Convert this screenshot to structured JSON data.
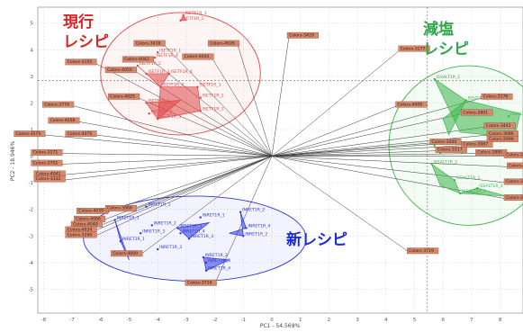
{
  "chart_data": {
    "type": "scatter",
    "xlabel": "PC1 - 54.569%",
    "ylabel": "PC2 - 18.946%",
    "xlim": [
      -8.2,
      8.8
    ],
    "ylim": [
      -5.9,
      5.6
    ],
    "xticks": [
      -8,
      -7,
      -6,
      -5,
      -4,
      -3,
      -2,
      -1,
      0,
      1,
      2,
      3,
      4,
      5,
      6,
      7,
      8
    ],
    "yticks": [
      -5,
      -4,
      -3,
      -2,
      -1,
      0,
      1,
      2,
      3,
      4,
      5
    ],
    "crosshair": {
      "x": 5.45,
      "y": 2.85
    },
    "loadings": [
      {
        "label": "Colors-3429",
        "x": 0.6,
        "y": 4.5
      },
      {
        "label": "Colors-3177",
        "x": 4.5,
        "y": 4.0
      },
      {
        "label": "Colors-4026",
        "x": -1.2,
        "y": 4.2
      },
      {
        "label": "Colors-4043",
        "x": -2.1,
        "y": 3.7
      },
      {
        "label": "Colors-3418",
        "x": -3.8,
        "y": 4.2
      },
      {
        "label": "Colors-4042",
        "x": -4.2,
        "y": 3.6
      },
      {
        "label": "Colors-4050",
        "x": -4.8,
        "y": 3.2
      },
      {
        "label": "Colors-3155",
        "x": -6.2,
        "y": 3.5
      },
      {
        "label": "Colors-4025",
        "x": -4.7,
        "y": 2.2
      },
      {
        "label": "Colors-3774",
        "x": -7.0,
        "y": 1.9
      },
      {
        "label": "Colors-4058",
        "x": -6.8,
        "y": 1.3
      },
      {
        "label": "Colors-4075",
        "x": -6.2,
        "y": 0.8
      },
      {
        "label": "Colors-3575",
        "x": -8.0,
        "y": 0.8
      },
      {
        "label": "Colors-3171",
        "x": -7.4,
        "y": 0.1
      },
      {
        "label": "Colors-3702",
        "x": -7.4,
        "y": -0.3
      },
      {
        "label": "Colors-4041",
        "x": -7.3,
        "y": -0.7
      },
      {
        "label": "Colors-3332",
        "x": -7.3,
        "y": -0.9
      },
      {
        "label": "Colors-4009",
        "x": 4.4,
        "y": 1.9
      },
      {
        "label": "Colors-3176",
        "x": 7.4,
        "y": 2.2
      },
      {
        "label": "Colors-2891",
        "x": 6.7,
        "y": 1.6
      },
      {
        "label": "Colors-3442",
        "x": 7.5,
        "y": 1.1
      },
      {
        "label": "Colors-3086",
        "x": 7.6,
        "y": 0.8
      },
      {
        "label": "Colors-2999",
        "x": 7.6,
        "y": 0.6
      },
      {
        "label": "Colors-3440",
        "x": 5.6,
        "y": 0.5
      },
      {
        "label": "Colors-3087",
        "x": 6.7,
        "y": 0.4
      },
      {
        "label": "Colors-3117",
        "x": 5.8,
        "y": 0.2
      },
      {
        "label": "Colors-2890",
        "x": 7.2,
        "y": 0.1
      },
      {
        "label": "Colors-3440",
        "x": 8.2,
        "y": 0.0
      },
      {
        "label": "Colors-3728",
        "x": 8.3,
        "y": -0.4
      },
      {
        "label": "Colors-3735",
        "x": 8.2,
        "y": -1.0
      },
      {
        "label": "Colors-3730",
        "x": 8.2,
        "y": -1.6
      },
      {
        "label": "Colors-3719",
        "x": 4.8,
        "y": -3.6
      },
      {
        "label": "Colors-4039",
        "x": -5.8,
        "y": -2.1
      },
      {
        "label": "Colors-4066",
        "x": -5.9,
        "y": -2.4
      },
      {
        "label": "Colors-4040",
        "x": -6.0,
        "y": -2.6
      },
      {
        "label": "Colors-4034",
        "x": -6.2,
        "y": -2.8
      },
      {
        "label": "Colors-3290",
        "x": -6.2,
        "y": -3.0
      },
      {
        "label": "Colors-3716",
        "x": -2.0,
        "y": -4.8
      },
      {
        "label": "Colors-4000",
        "x": -4.6,
        "y": -3.7
      },
      {
        "label": "Colors-3966",
        "x": -4.8,
        "y": -2.0
      }
    ],
    "groups": [
      {
        "label": "現行 レシピ",
        "color": "#e04545",
        "ellipse": {
          "cx": -3.2,
          "cy": 3.1,
          "rx": 2.8,
          "ry": 2.3
        },
        "points": [
          {
            "label": "ISETF1R_1",
            "x": -3.1,
            "y": 5.3
          },
          {
            "label": "ISETF1R_1",
            "x": -3.2,
            "y": 5.1
          },
          {
            "label": "ISETF1R_1",
            "x": -4.0,
            "y": 3.9
          },
          {
            "label": "ISETF1R_4",
            "x": -4.1,
            "y": 3.7
          },
          {
            "label": "ISETF1R_2",
            "x": -4.7,
            "y": 3.4
          },
          {
            "label": "ISETF1R_3",
            "x": -4.4,
            "y": 3.1
          },
          {
            "label": "ISETF1R_4",
            "x": -3.6,
            "y": 3.1
          },
          {
            "label": "ISETF1R_4",
            "x": -3.9,
            "y": 2.6
          },
          {
            "label": "ISETF1R_1",
            "x": -2.6,
            "y": 2.6
          },
          {
            "label": "ISETF1R_2",
            "x": -2.5,
            "y": 2.2
          },
          {
            "label": "ISETF1R_3",
            "x": -2.5,
            "y": 1.7
          },
          {
            "label": "ISETF1R_3",
            "x": -4.0,
            "y": 1.4
          },
          {
            "label": "ISETF1R_2",
            "x": -4.3,
            "y": 1.6
          },
          {
            "label": "ISETF1R_3",
            "x": -4.4,
            "y": 2.0
          }
        ],
        "polygons": [
          [
            [
              -4.7,
              3.4
            ],
            [
              -4.4,
              3.1
            ],
            [
              -3.6,
              3.1
            ],
            [
              -3.9,
              2.6
            ]
          ],
          [
            [
              -3.9,
              2.6
            ],
            [
              -2.6,
              2.6
            ],
            [
              -2.5,
              1.7
            ],
            [
              -4.0,
              1.4
            ]
          ],
          [
            [
              -4.4,
              2.0
            ],
            [
              -4.0,
              1.4
            ],
            [
              -3.2,
              2.1
            ]
          ],
          [
            [
              -3.1,
              5.3
            ],
            [
              -3.2,
              5.1
            ],
            [
              -3.0,
              5.1
            ]
          ]
        ]
      },
      {
        "label": "減塩 レシピ",
        "color": "#3bb54a",
        "ellipse": {
          "cx": 6.9,
          "cy": 0.4,
          "rx": 2.8,
          "ry": 3.0
        },
        "points": [
          {
            "label": "ISSALT1R_1",
            "x": 5.7,
            "y": 2.9
          },
          {
            "label": "ISSALT1R_2",
            "x": 6.8,
            "y": 2.1
          },
          {
            "label": "ISSALT1R_1",
            "x": 8.3,
            "y": 1.5
          },
          {
            "label": "ISSALT1R_4",
            "x": 5.7,
            "y": 0.4
          },
          {
            "label": "ISSALT1R_3",
            "x": 5.9,
            "y": 0.1
          },
          {
            "label": "ISSALT1R_2",
            "x": 5.6,
            "y": -0.3
          },
          {
            "label": "ISSALT1R_1",
            "x": 6.4,
            "y": -0.9
          },
          {
            "label": "ISSALT1R_3",
            "x": 6.6,
            "y": -1.4
          },
          {
            "label": "ISSALT1R_4",
            "x": 7.2,
            "y": -1.2
          }
        ],
        "polygons": [
          [
            [
              5.7,
              2.9
            ],
            [
              6.8,
              2.1
            ],
            [
              8.7,
              1.6
            ],
            [
              8.5,
              0.7
            ],
            [
              6.6,
              0.9
            ]
          ],
          [
            [
              6.0,
              1.4
            ],
            [
              6.8,
              2.1
            ],
            [
              6.2,
              0.8
            ]
          ],
          [
            [
              5.6,
              -0.3
            ],
            [
              6.4,
              -0.9
            ],
            [
              6.6,
              -1.4
            ],
            [
              5.9,
              -1.1
            ]
          ],
          [
            [
              6.6,
              -1.4
            ],
            [
              7.2,
              -1.2
            ],
            [
              8.2,
              -1.5
            ]
          ]
        ]
      },
      {
        "label": "新レシピ",
        "color": "#2c36e0",
        "ellipse": {
          "cx": -2.7,
          "cy": -3.1,
          "rx": 3.9,
          "ry": 1.6
        },
        "points": [
          {
            "label": "INRET1R_1",
            "x": -4.4,
            "y": -1.9
          },
          {
            "label": "INRET1R_1",
            "x": -5.5,
            "y": -2.4
          },
          {
            "label": "INRET1R_2",
            "x": -4.2,
            "y": -2.6
          },
          {
            "label": "INRET1R_3",
            "x": -4.6,
            "y": -2.9
          },
          {
            "label": "INRET1R_1",
            "x": -5.3,
            "y": -3.2
          },
          {
            "label": "INRET1R_3",
            "x": -4.0,
            "y": -3.5
          },
          {
            "label": "INRET1R_1",
            "x": -2.5,
            "y": -2.3
          },
          {
            "label": "INRET1R_3",
            "x": -3.3,
            "y": -2.7
          },
          {
            "label": "INRET1R_4",
            "x": -3.2,
            "y": -2.9
          },
          {
            "label": "INRET1R_3",
            "x": -2.9,
            "y": -3.1
          },
          {
            "label": "INRET1R_2",
            "x": -1.1,
            "y": -2.1
          },
          {
            "label": "INRET1R_4",
            "x": -0.9,
            "y": -2.7
          },
          {
            "label": "INRET1R_2",
            "x": -1.0,
            "y": -3.0
          },
          {
            "label": "INRET1R_2",
            "x": -2.4,
            "y": -3.8
          },
          {
            "label": "INRET1R_3",
            "x": -2.3,
            "y": -4.0
          },
          {
            "label": "INRET1R_4",
            "x": -2.3,
            "y": -4.3
          }
        ],
        "polygons": [
          [
            [
              -5.5,
              -2.4
            ],
            [
              -5.3,
              -3.2
            ],
            [
              -5.0,
              -3.9
            ]
          ],
          [
            [
              -1.1,
              -2.1
            ],
            [
              -0.9,
              -2.7
            ],
            [
              -1.5,
              -2.9
            ],
            [
              -1.0,
              -3.0
            ]
          ],
          [
            [
              -3.3,
              -2.7
            ],
            [
              -2.9,
              -3.1
            ],
            [
              -2.2,
              -2.5
            ]
          ],
          [
            [
              -2.4,
              -3.8
            ],
            [
              -2.3,
              -4.3
            ],
            [
              -1.5,
              -3.9
            ]
          ]
        ]
      }
    ]
  },
  "annotations": {
    "current": [
      "現行",
      "レシピ"
    ],
    "salt": [
      "減塩",
      "レシピ"
    ],
    "new": [
      "新レシピ"
    ]
  }
}
